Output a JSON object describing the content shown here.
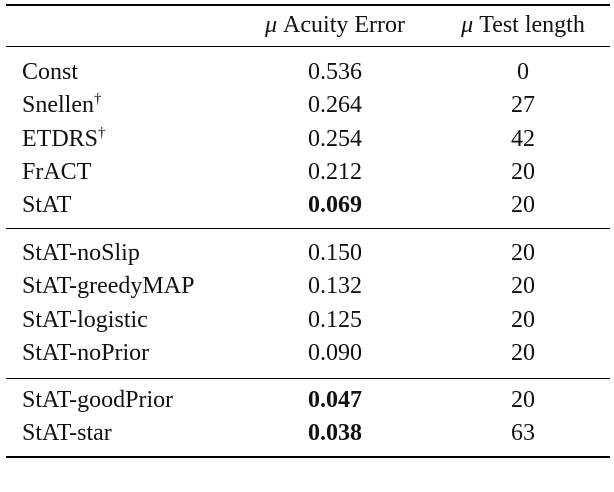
{
  "table": {
    "header": [
      {
        "symbol": "μ",
        "text": "Acuity Error"
      },
      {
        "symbol": "μ",
        "text": "Test length"
      }
    ],
    "groups": [
      [
        {
          "name": "Const",
          "error": "0.536",
          "length": "0"
        },
        {
          "name": "Snellen",
          "sup": "†",
          "error": "0.264",
          "length": "27"
        },
        {
          "name": "ETDRS",
          "sup": "†",
          "error": "0.254",
          "length": "42"
        },
        {
          "name": "FrACT",
          "error": "0.212",
          "length": "20"
        },
        {
          "name": "StAT",
          "error": "0.069",
          "bold": true,
          "length": "20"
        }
      ],
      [
        {
          "name": "StAT-noSlip",
          "error": "0.150",
          "length": "20"
        },
        {
          "name": "StAT-greedyMAP",
          "error": "0.132",
          "length": "20"
        },
        {
          "name": "StAT-logistic",
          "error": "0.125",
          "length": "20"
        },
        {
          "name": "StAT-noPrior",
          "error": "0.090",
          "length": "20"
        }
      ],
      [
        {
          "name": "StAT-goodPrior",
          "error": "0.047",
          "bold": true,
          "length": "20"
        },
        {
          "name": "StAT-star",
          "error": "0.038",
          "bold": true,
          "length": "63"
        }
      ]
    ]
  }
}
